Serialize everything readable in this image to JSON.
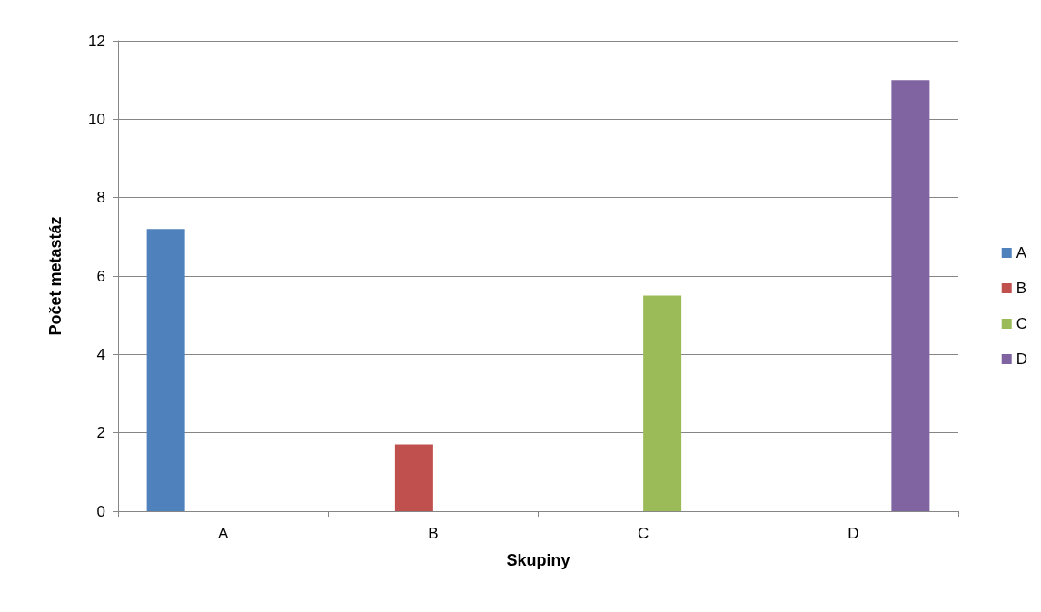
{
  "chart_data": {
    "type": "bar",
    "xlabel": "Skupiny",
    "ylabel": "Počet metastáz",
    "categories": [
      "A",
      "B",
      "C",
      "D"
    ],
    "series": [
      {
        "name": "A",
        "color": "#4f81bd",
        "values": [
          7.2,
          null,
          null,
          null
        ]
      },
      {
        "name": "B",
        "color": "#c0504d",
        "values": [
          null,
          1.7,
          null,
          null
        ]
      },
      {
        "name": "C",
        "color": "#9bbb59",
        "values": [
          null,
          null,
          5.5,
          null
        ]
      },
      {
        "name": "D",
        "color": "#8064a2",
        "values": [
          null,
          null,
          null,
          11
        ]
      }
    ],
    "ylim": [
      0,
      12
    ],
    "yticks": [
      0,
      2,
      4,
      6,
      8,
      10,
      12
    ],
    "grid": "y",
    "legend": "right"
  }
}
